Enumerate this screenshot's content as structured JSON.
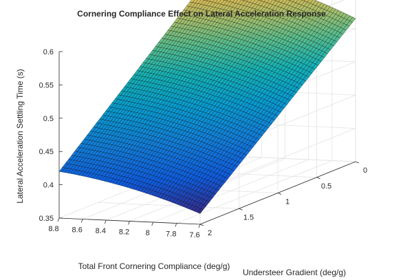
{
  "chart_data": {
    "type": "surface",
    "title": "Cornering Compliance Effect on Lateral Acceleration Response",
    "xlabel": "Total Front Cornering Compliance (deg/g)",
    "ylabel": "Understeer Gradient (deg/g)",
    "zlabel": "Lateral Acceleration Settling Time (s)",
    "xlim": [
      7.6,
      8.8
    ],
    "ylim": [
      0,
      2
    ],
    "zlim": [
      0.35,
      0.6
    ],
    "x_ticks": [
      "8.8",
      "8.6",
      "8.4",
      "8.2",
      "8",
      "7.8",
      "7.6"
    ],
    "y_ticks": [
      "0",
      "0.5",
      "1",
      "1.5",
      "2"
    ],
    "z_ticks": [
      "0.35",
      "0.4",
      "0.45",
      "0.5",
      "0.55",
      "0.6"
    ],
    "x_range": [
      7.6,
      8.8
    ],
    "y_range": [
      0,
      2
    ],
    "corner_values": [
      {
        "x": 8.8,
        "y": 2,
        "z": 0.42
      },
      {
        "x": 7.6,
        "y": 2,
        "z": 0.366
      },
      {
        "x": 8.8,
        "y": 0,
        "z": 0.629
      },
      {
        "x": 7.6,
        "y": 0,
        "z": 0.565
      }
    ],
    "grid": true,
    "colormap": "parula",
    "edge_color": "#000000"
  }
}
